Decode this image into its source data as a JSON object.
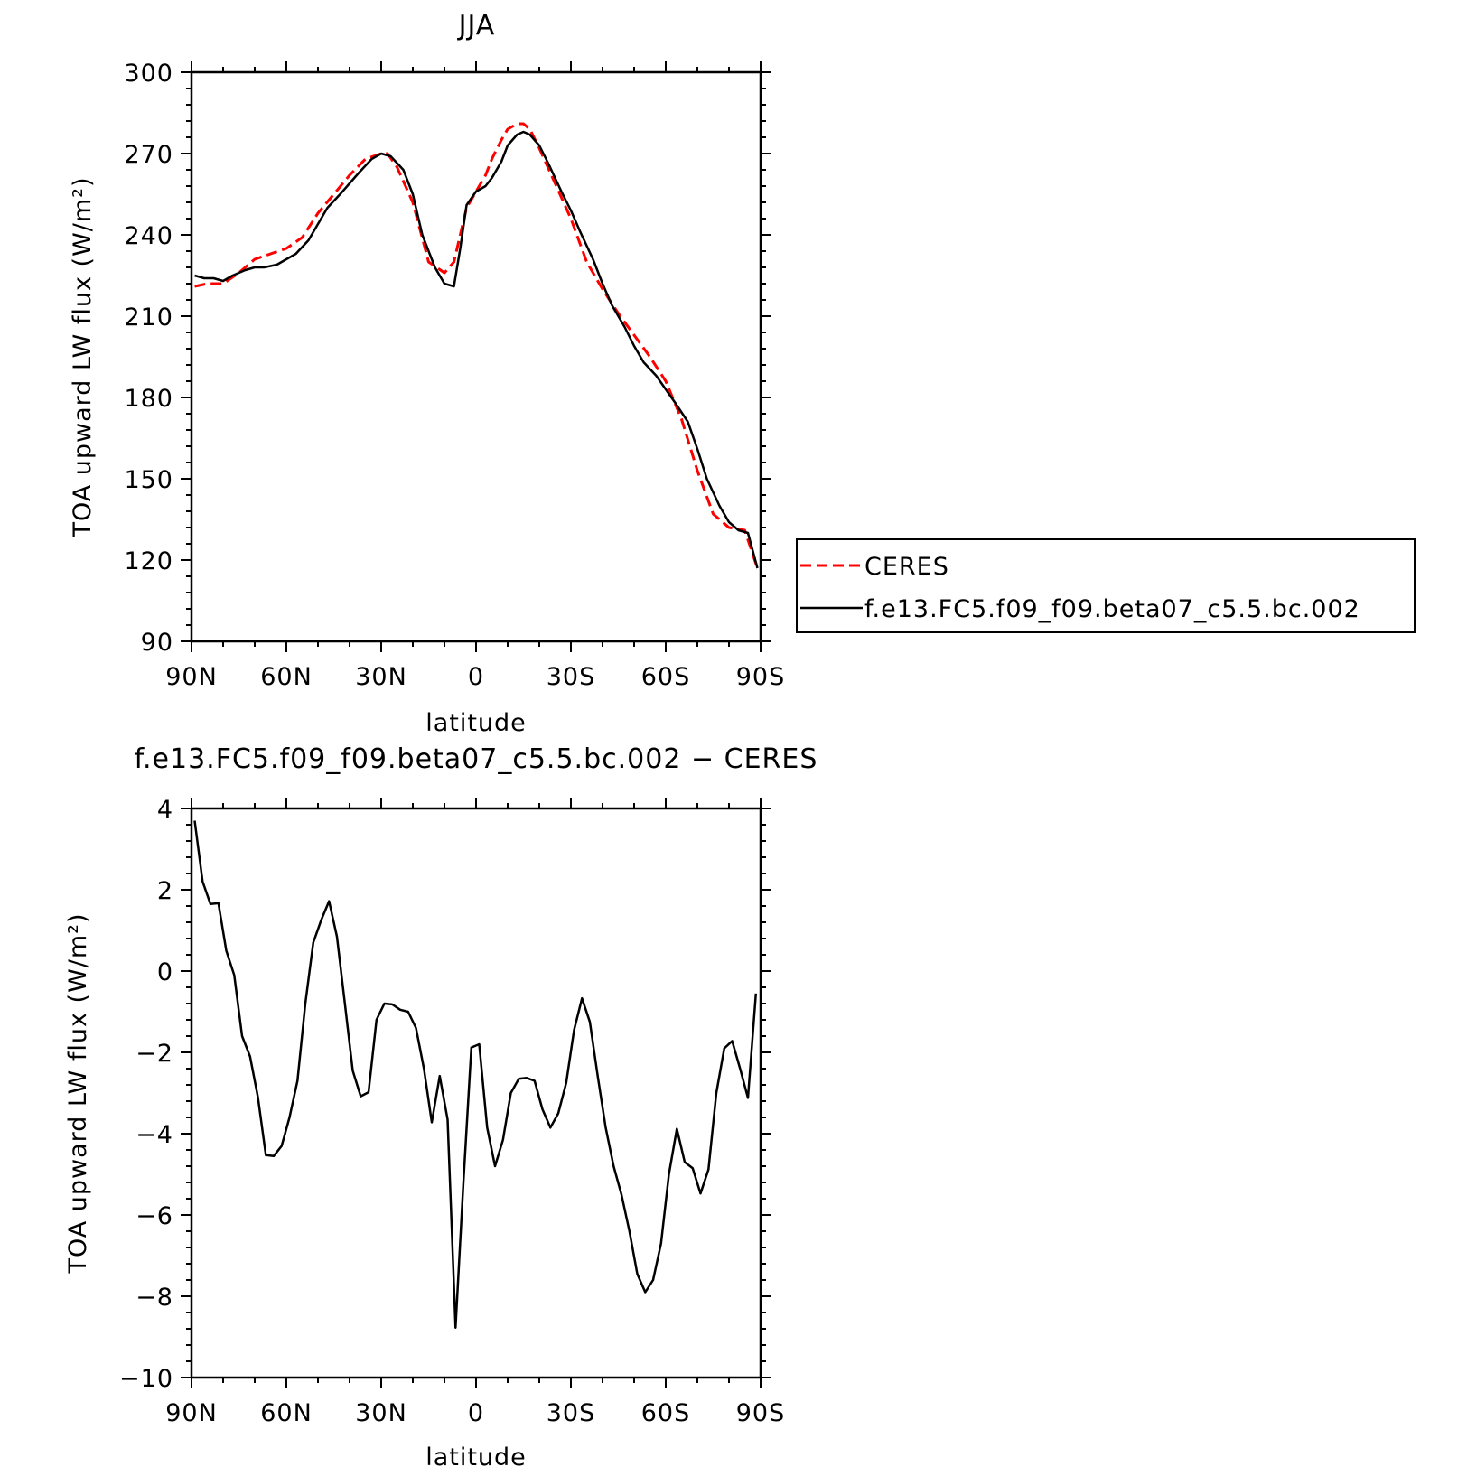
{
  "chart_data": [
    {
      "type": "line",
      "title": "JJA",
      "xlabel": "latitude",
      "ylabel": "TOA upward LW flux (W/m²)",
      "xlim": [
        90,
        -90
      ],
      "ylim": [
        90,
        300
      ],
      "x_ticks": [
        90,
        60,
        30,
        0,
        -30,
        -60,
        -90
      ],
      "x_tick_labels": [
        "90N",
        "60N",
        "30N",
        "0",
        "30S",
        "60S",
        "90S"
      ],
      "y_ticks": [
        90,
        120,
        150,
        180,
        210,
        240,
        270,
        300
      ],
      "y_tick_labels": [
        "90",
        "120",
        "150",
        "180",
        "210",
        "240",
        "270",
        "300"
      ],
      "legend_position": "right",
      "series": [
        {
          "name": "CERES",
          "color": "#ff0000",
          "style": "dashed",
          "x": [
            89,
            85,
            80,
            75,
            70,
            65,
            60,
            55,
            50,
            45,
            40,
            35,
            30,
            28,
            25,
            20,
            15,
            10,
            7,
            5,
            3,
            0,
            -3,
            -5,
            -8,
            -10,
            -13,
            -15,
            -17,
            -20,
            -25,
            -30,
            -35,
            -40,
            -45,
            -50,
            -55,
            -60,
            -65,
            -70,
            -75,
            -80,
            -85,
            -89
          ],
          "values": [
            221,
            222,
            222,
            226,
            231,
            233,
            235,
            239,
            248,
            255,
            262,
            268,
            270,
            270,
            265,
            252,
            230,
            226,
            230,
            240,
            250,
            256,
            262,
            268,
            275,
            279,
            281,
            281,
            279,
            272,
            259,
            246,
            230,
            220,
            211,
            203,
            195,
            186,
            172,
            153,
            137,
            132,
            131,
            117
          ]
        },
        {
          "name": "f.e13.FC5.f09_f09.beta07_c5.5.bc.002",
          "color": "#000000",
          "style": "solid",
          "x": [
            89,
            86,
            83,
            80,
            77,
            73,
            70,
            67,
            63,
            60,
            57,
            53,
            50,
            47,
            43,
            40,
            37,
            33,
            30,
            27,
            23,
            20,
            17,
            13,
            10,
            7,
            5,
            3,
            0,
            -3,
            -5,
            -8,
            -10,
            -13,
            -15,
            -17,
            -20,
            -23,
            -27,
            -30,
            -33,
            -37,
            -40,
            -43,
            -47,
            -50,
            -53,
            -57,
            -60,
            -63,
            -67,
            -70,
            -73,
            -77,
            -80,
            -83,
            -86,
            -89
          ],
          "values": [
            225,
            224,
            224,
            223,
            225,
            227,
            228,
            228,
            229,
            231,
            233,
            238,
            244,
            250,
            255,
            259,
            263,
            268,
            270,
            269,
            264,
            255,
            240,
            228,
            222,
            221,
            235,
            251,
            256,
            258,
            261,
            267,
            273,
            277,
            278,
            277,
            273,
            266,
            256,
            249,
            241,
            231,
            222,
            214,
            206,
            199,
            193,
            188,
            183,
            178,
            171,
            161,
            150,
            140,
            134,
            131,
            130,
            117
          ]
        }
      ]
    },
    {
      "type": "line",
      "title": "f.e13.FC5.f09_f09.beta07_c5.5.bc.002 − CERES",
      "xlabel": "latitude",
      "ylabel": "TOA upward LW flux (W/m²)",
      "xlim": [
        90,
        -90
      ],
      "ylim": [
        -10,
        4
      ],
      "x_ticks": [
        90,
        60,
        30,
        0,
        -30,
        -60,
        -90
      ],
      "x_tick_labels": [
        "90N",
        "60N",
        "30N",
        "0",
        "30S",
        "60S",
        "90S"
      ],
      "y_ticks": [
        -10,
        -8,
        -6,
        -4,
        -2,
        0,
        2,
        4
      ],
      "y_tick_labels": [
        "−10",
        "−8",
        "−6",
        "−4",
        "−2",
        "0",
        "2",
        "4"
      ],
      "series": [
        {
          "color": "#000000",
          "style": "solid",
          "x": [
            89,
            86.5,
            84,
            81.5,
            79,
            76.5,
            74,
            71.5,
            69,
            66.5,
            64,
            61.5,
            59,
            56.5,
            54,
            51.5,
            49,
            46.5,
            44,
            41.5,
            39,
            36.5,
            34,
            31.5,
            29,
            26.5,
            24,
            21.5,
            19,
            16.5,
            14,
            11.5,
            9,
            6.5,
            4,
            1.5,
            -1,
            -3.5,
            -6,
            -8.5,
            -11,
            -13.5,
            -16,
            -18.5,
            -21,
            -23.5,
            -26,
            -28.5,
            -31,
            -33.5,
            -36,
            -38.5,
            -41,
            -43.5,
            -46,
            -48.5,
            -51,
            -53.5,
            -56,
            -58.5,
            -61,
            -63.5,
            -66,
            -68.5,
            -71,
            -73.5,
            -76,
            -78.5,
            -81,
            -83.5,
            -86,
            -88.5
          ],
          "values": [
            3.7,
            2.2,
            1.65,
            1.67,
            0.5,
            -0.1,
            -1.6,
            -2.1,
            -3.1,
            -4.53,
            -4.55,
            -4.3,
            -3.6,
            -2.7,
            -0.8,
            0.7,
            1.25,
            1.72,
            0.85,
            -0.8,
            -2.45,
            -3.08,
            -2.98,
            -1.2,
            -0.8,
            -0.82,
            -0.95,
            -1.0,
            -1.4,
            -2.4,
            -3.72,
            -2.58,
            -3.65,
            -8.77,
            -5.2,
            -1.88,
            -1.8,
            -3.85,
            -4.8,
            -4.15,
            -3.0,
            -2.65,
            -2.63,
            -2.7,
            -3.4,
            -3.85,
            -3.5,
            -2.75,
            -1.45,
            -0.67,
            -1.25,
            -2.6,
            -3.85,
            -4.8,
            -5.5,
            -6.4,
            -7.45,
            -7.9,
            -7.6,
            -6.7,
            -5.0,
            -3.88,
            -4.7,
            -4.85,
            -5.47,
            -4.88,
            -3.0,
            -1.9,
            -1.72,
            -2.4,
            -3.12,
            -0.55
          ]
        }
      ]
    }
  ]
}
